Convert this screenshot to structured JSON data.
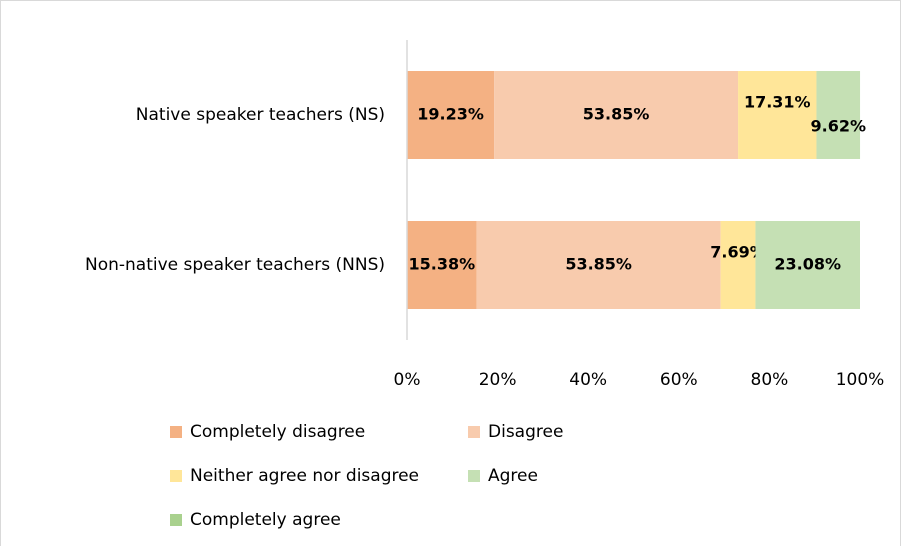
{
  "chart_data": {
    "type": "stacked_barh",
    "categories": [
      "Native speaker teachers (NS)",
      "Non-native speaker teachers (NNS)"
    ],
    "series": [
      {
        "name": "Completely disagree",
        "color": "#f4b183",
        "values": [
          19.23,
          15.38
        ],
        "value_labels": [
          "19.23%",
          "15.38%"
        ]
      },
      {
        "name": "Disagree",
        "color": "#f8cbad",
        "values": [
          53.85,
          53.85
        ],
        "value_labels": [
          "53.85%",
          "53.85%"
        ]
      },
      {
        "name": "Neither agree nor disagree",
        "color": "#ffe699",
        "values": [
          17.31,
          7.69
        ],
        "value_labels": [
          "17.31%",
          "7.69%"
        ]
      },
      {
        "name": "Agree",
        "color": "#c5e0b4",
        "values": [
          9.62,
          23.08
        ],
        "value_labels": [
          "9.62%",
          "23.08%"
        ]
      },
      {
        "name": "Completely agree",
        "color": "#a9d18e",
        "values": [
          0,
          0
        ]
      }
    ],
    "xlim": [
      0,
      100
    ],
    "xticks": [
      {
        "value": 0,
        "label": "0%"
      },
      {
        "value": 20,
        "label": "20%"
      },
      {
        "value": 40,
        "label": "40%"
      },
      {
        "value": 60,
        "label": "60%"
      },
      {
        "value": 80,
        "label": "80%"
      },
      {
        "value": 100,
        "label": "100%"
      }
    ],
    "grid": false
  }
}
